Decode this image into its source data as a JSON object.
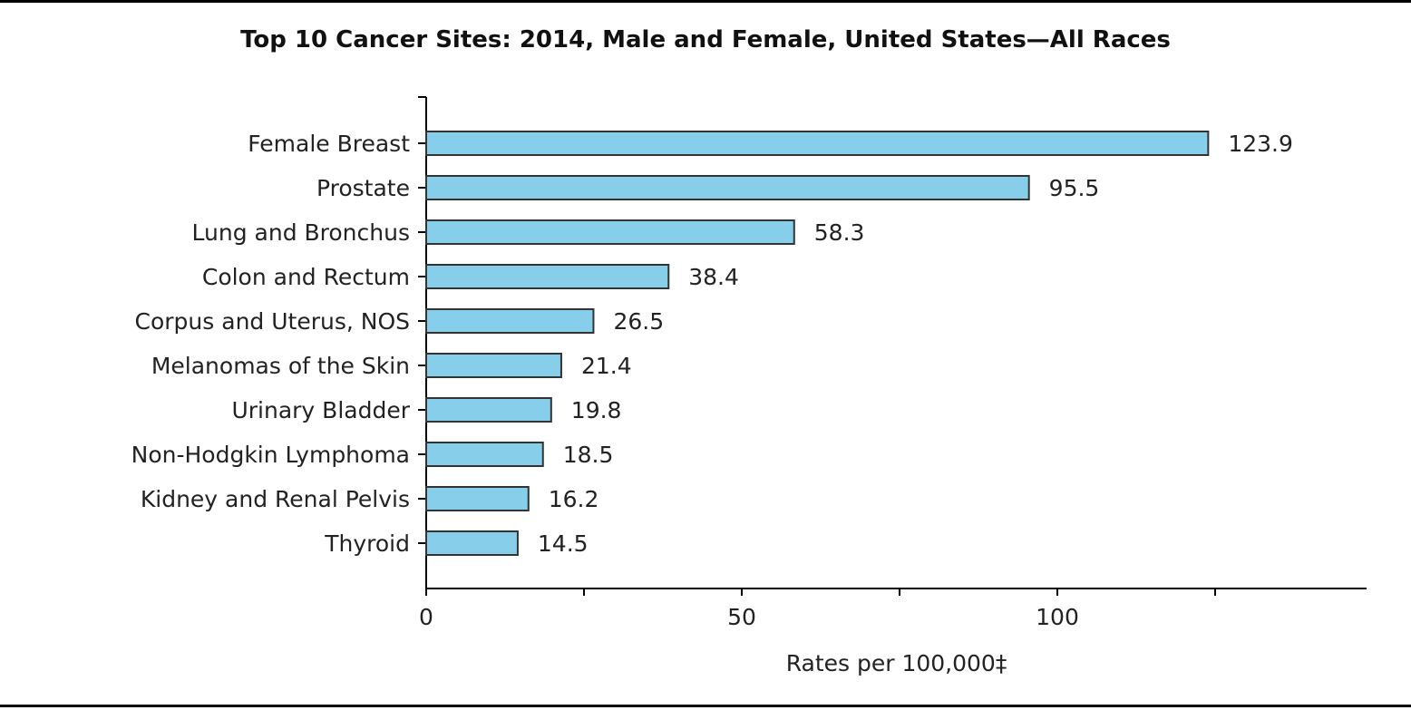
{
  "chart_data": {
    "type": "bar",
    "orientation": "horizontal",
    "title": "Top 10 Cancer Sites: 2014, Male and Female, United States—All Races",
    "xlabel": "Rates per 100,000‡",
    "ylabel": "",
    "categories": [
      "Female Breast",
      "Prostate",
      "Lung and Bronchus",
      "Colon and Rectum",
      "Corpus and Uterus, NOS",
      "Melanomas of the Skin",
      "Urinary Bladder",
      "Non-Hodgkin Lymphoma",
      "Kidney and Renal Pelvis",
      "Thyroid"
    ],
    "values": [
      123.9,
      95.5,
      58.3,
      38.4,
      26.5,
      21.4,
      19.8,
      18.5,
      16.2,
      14.5
    ],
    "value_labels": [
      "123.9",
      "95.5",
      "58.3",
      "38.4",
      "26.5",
      "21.4",
      "19.8",
      "18.5",
      "16.2",
      "14.5"
    ],
    "xlim": [
      0,
      149
    ],
    "major_ticks": [
      0,
      50,
      100
    ],
    "major_tick_labels": [
      "0",
      "50",
      "100"
    ],
    "minor_ticks": [
      25,
      75,
      125
    ],
    "grid": false,
    "legend": "none",
    "bar_color": "#87ceeb",
    "bar_edge_color": "#333333"
  }
}
